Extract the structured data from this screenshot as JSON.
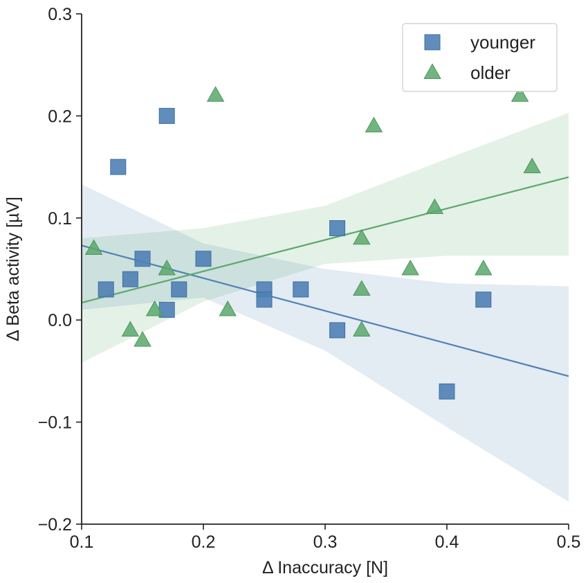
{
  "chart_data": {
    "type": "scatter",
    "title": "",
    "xlabel": "Δ Inaccuracy [N]",
    "ylabel": "Δ Beta activity [µV]",
    "xlim": [
      0.1,
      0.5
    ],
    "ylim": [
      -0.2,
      0.3
    ],
    "xticks": [
      0.1,
      0.2,
      0.3,
      0.4,
      0.5
    ],
    "xtick_labels": [
      "0.1",
      "0.2",
      "0.3",
      "0.4",
      "0.5"
    ],
    "yticks": [
      -0.2,
      -0.1,
      0.0,
      0.1,
      0.2,
      0.3
    ],
    "ytick_labels": [
      "−0.2",
      "−0.1",
      "0.0",
      "0.1",
      "0.2",
      "0.3"
    ],
    "grid": false,
    "legend_position": "top-right",
    "series": [
      {
        "name": "younger",
        "marker": "square",
        "color": "#4f81b5",
        "points": [
          [
            0.12,
            0.03
          ],
          [
            0.13,
            0.15
          ],
          [
            0.14,
            0.04
          ],
          [
            0.15,
            0.06
          ],
          [
            0.17,
            0.2
          ],
          [
            0.17,
            0.01
          ],
          [
            0.18,
            0.03
          ],
          [
            0.2,
            0.06
          ],
          [
            0.25,
            0.03
          ],
          [
            0.25,
            0.02
          ],
          [
            0.28,
            0.03
          ],
          [
            0.31,
            0.09
          ],
          [
            0.31,
            -0.01
          ],
          [
            0.4,
            -0.07
          ],
          [
            0.43,
            0.02
          ]
        ],
        "fit": {
          "x": [
            0.1,
            0.5
          ],
          "y": [
            0.073,
            -0.055
          ]
        },
        "ci_band": {
          "x": [
            0.1,
            0.2,
            0.3,
            0.4,
            0.5
          ],
          "lower": [
            0.01,
            0.022,
            -0.03,
            -0.105,
            -0.178
          ],
          "upper": [
            0.133,
            0.075,
            0.05,
            0.036,
            0.033
          ]
        }
      },
      {
        "name": "older",
        "marker": "triangle",
        "color": "#5aa86b",
        "points": [
          [
            0.11,
            0.07
          ],
          [
            0.14,
            -0.01
          ],
          [
            0.15,
            -0.02
          ],
          [
            0.16,
            0.01
          ],
          [
            0.17,
            0.05
          ],
          [
            0.21,
            0.22
          ],
          [
            0.22,
            0.01
          ],
          [
            0.33,
            0.08
          ],
          [
            0.33,
            0.03
          ],
          [
            0.33,
            -0.01
          ],
          [
            0.34,
            0.19
          ],
          [
            0.37,
            0.05
          ],
          [
            0.39,
            0.11
          ],
          [
            0.43,
            0.05
          ],
          [
            0.46,
            0.22
          ],
          [
            0.47,
            0.15
          ]
        ],
        "fit": {
          "x": [
            0.1,
            0.5
          ],
          "y": [
            0.017,
            0.14
          ]
        },
        "ci_band": {
          "x": [
            0.1,
            0.2,
            0.3,
            0.4,
            0.5
          ],
          "lower": [
            -0.042,
            0.018,
            0.055,
            0.063,
            0.063
          ],
          "upper": [
            0.08,
            0.09,
            0.112,
            0.158,
            0.203
          ]
        }
      }
    ]
  }
}
